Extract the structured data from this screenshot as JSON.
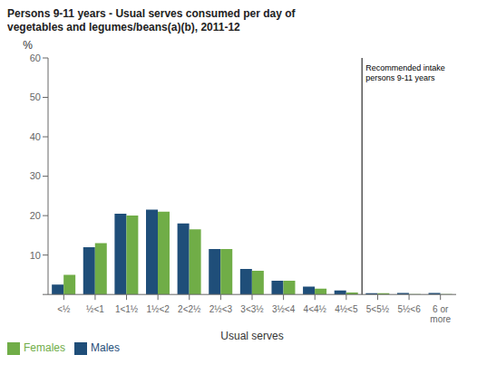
{
  "chart_data": {
    "type": "bar",
    "title": "Persons 9-11 years - Usual serves consumed per day of\nvegetables and legumes/beans(a)(b), 2011-12",
    "xlabel": "Usual serves",
    "ylabel": "%",
    "categories": [
      "<½",
      "½<1",
      "1<1½",
      "1½<2",
      "2<2½",
      "2½<3",
      "3<3½",
      "3½<4",
      "4<4½",
      "4½<5",
      "5<5½",
      "5½<6",
      "6 or\nmore"
    ],
    "series": [
      {
        "name": "Males",
        "color": "#1F4E79",
        "values": [
          2.5,
          12.0,
          20.5,
          21.5,
          18.0,
          11.5,
          6.5,
          3.5,
          2.0,
          1.0,
          0.3,
          0.4,
          0.4
        ]
      },
      {
        "name": "Females",
        "color": "#70AD47",
        "values": [
          5.0,
          13.0,
          20.0,
          21.0,
          16.5,
          11.5,
          6.0,
          3.5,
          1.5,
          0.5,
          0.3,
          0.1,
          0.1
        ]
      }
    ],
    "ylim": [
      0,
      60
    ],
    "yticks": [
      {
        "value": 0,
        "label": null
      },
      10,
      20,
      30,
      40,
      50,
      60
    ],
    "annotations": [
      {
        "text": "Recommended intake\npersons 9-11 years",
        "line_after": "4½<5"
      }
    ],
    "legend": "lower left",
    "grid": false
  }
}
